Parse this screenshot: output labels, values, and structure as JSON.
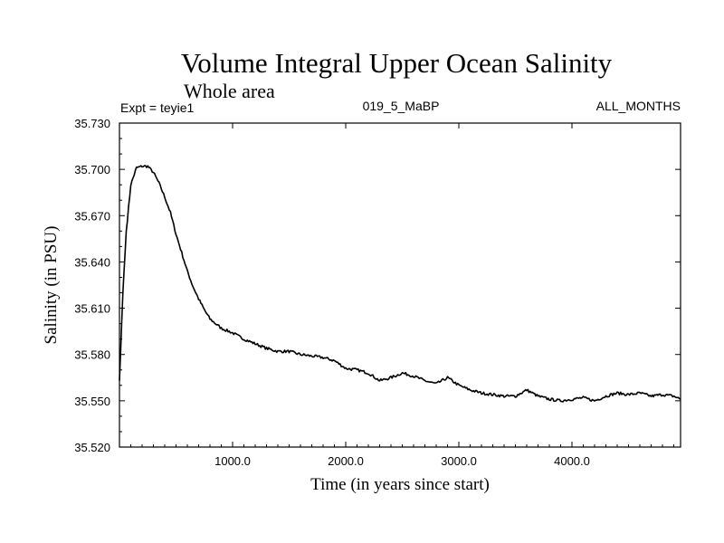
{
  "chart_data": {
    "type": "line",
    "title": "Volume Integral Upper Ocean Salinity",
    "subtitle": "Whole area",
    "header_left": "Expt = teyie1",
    "header_center": "019_5_MaBP",
    "header_right": "ALL_MONTHS",
    "xlabel": "Time (in years since start)",
    "ylabel": "Salinity (in PSU)",
    "xlim": [
      0,
      4960
    ],
    "ylim": [
      35.52,
      35.73
    ],
    "x_ticks": [
      1000,
      2000,
      3000,
      4000
    ],
    "x_tick_labels": [
      "1000.0",
      "2000.0",
      "3000.0",
      "4000.0"
    ],
    "y_ticks": [
      35.52,
      35.55,
      35.58,
      35.61,
      35.64,
      35.67,
      35.7,
      35.73
    ],
    "y_tick_labels": [
      "35.520",
      "35.550",
      "35.580",
      "35.610",
      "35.640",
      "35.670",
      "35.700",
      "35.730"
    ],
    "grid": false,
    "series": [
      {
        "name": "Salinity",
        "color": "#000000",
        "x": [
          0,
          30,
          60,
          100,
          150,
          200,
          250,
          300,
          350,
          400,
          450,
          500,
          550,
          600,
          650,
          700,
          750,
          800,
          900,
          1000,
          1100,
          1200,
          1300,
          1400,
          1500,
          1600,
          1700,
          1800,
          1900,
          2000,
          2100,
          2200,
          2300,
          2400,
          2500,
          2600,
          2700,
          2800,
          2900,
          3000,
          3100,
          3200,
          3300,
          3400,
          3500,
          3600,
          3700,
          3800,
          3900,
          4000,
          4100,
          4200,
          4300,
          4400,
          4500,
          4600,
          4700,
          4800,
          4900,
          4960
        ],
        "y": [
          35.563,
          35.62,
          35.66,
          35.69,
          35.701,
          35.702,
          35.702,
          35.698,
          35.691,
          35.682,
          35.672,
          35.658,
          35.646,
          35.634,
          35.624,
          35.616,
          35.609,
          35.603,
          35.597,
          35.594,
          35.59,
          35.587,
          35.584,
          35.582,
          35.582,
          35.58,
          35.579,
          35.578,
          35.576,
          35.571,
          35.57,
          35.568,
          35.563,
          35.565,
          35.568,
          35.566,
          35.563,
          35.561,
          35.565,
          35.56,
          35.557,
          35.555,
          35.554,
          35.553,
          35.553,
          35.557,
          35.553,
          35.551,
          35.55,
          35.551,
          35.552,
          35.55,
          35.553,
          35.555,
          35.554,
          35.555,
          35.553,
          35.554,
          35.553,
          35.551
        ]
      }
    ]
  }
}
